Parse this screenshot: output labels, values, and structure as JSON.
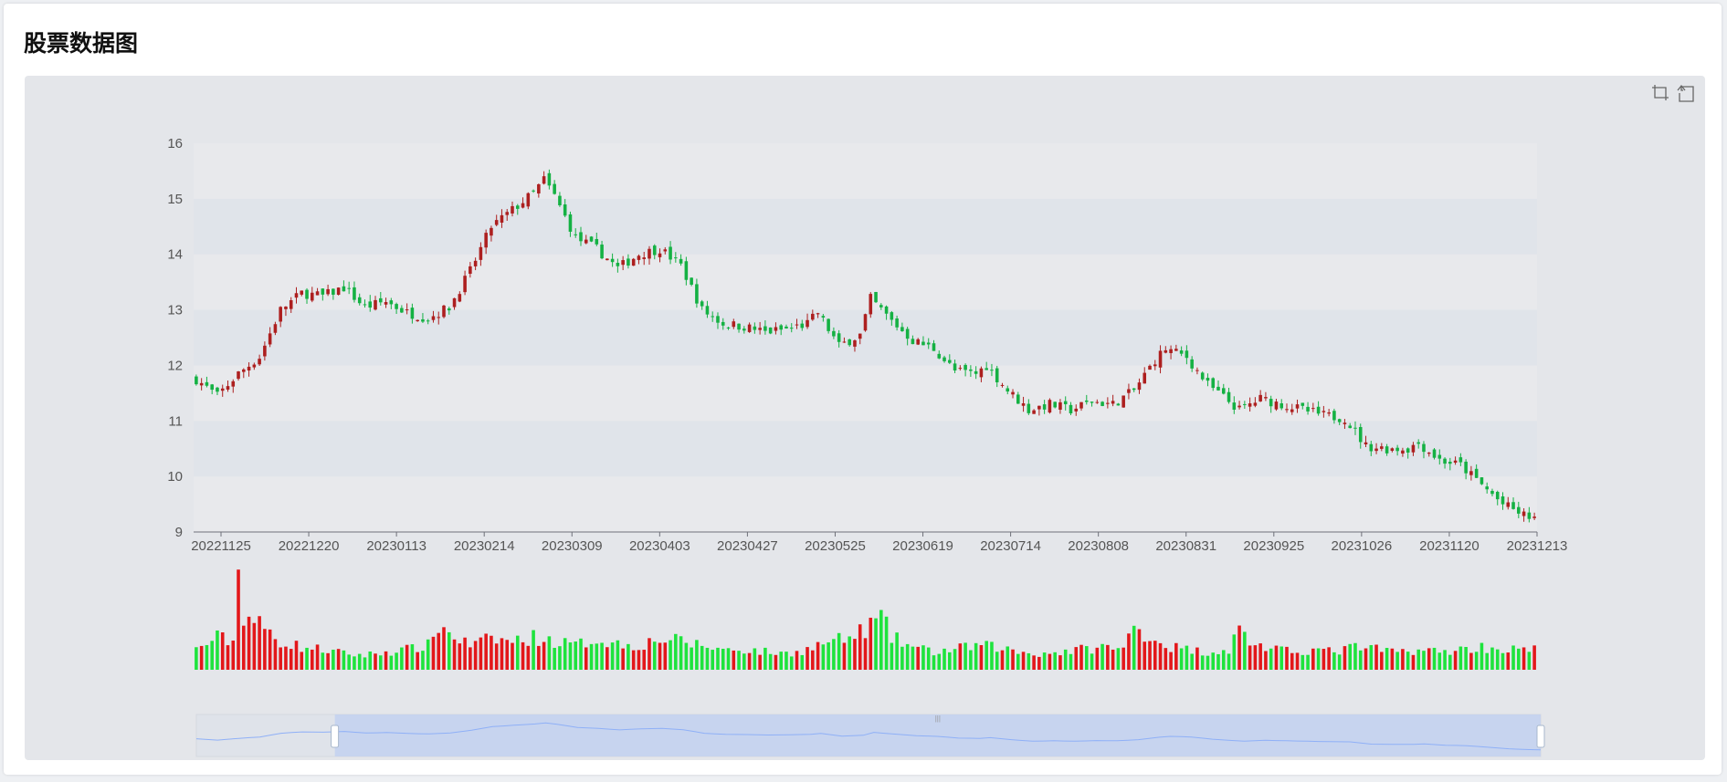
{
  "page": {
    "title": "股票数据图"
  },
  "toolbox": {
    "zoom_icon": "dataZoom-icon",
    "reset_icon": "dataZoom-reset-icon"
  },
  "colors": {
    "up": "#ad1f1f",
    "down": "#14b143",
    "volume_up": "#e3171a",
    "volume_down": "#1ee33d",
    "band_light": "#e8e9ec",
    "band_dark": "#e0e4ea",
    "axis": "#6e7079",
    "slider_fill": "#c4d1f0",
    "slider_line": "#8fb0f7"
  },
  "chart_data": {
    "type": "candlestick",
    "y_axis": {
      "min": 9,
      "max": 16,
      "ticks": [
        "16",
        "15",
        "14",
        "13",
        "12",
        "11",
        "10",
        "9"
      ]
    },
    "x_axis": {
      "tick_labels": [
        "20221125",
        "20221220",
        "20230113",
        "20230214",
        "20230309",
        "20230403",
        "20230427",
        "20230525",
        "20230619",
        "20230714",
        "20230808",
        "20230831",
        "20230925",
        "20231026",
        "20231120",
        "20231213"
      ]
    },
    "grid": "alternating bands",
    "close_path": [
      [
        0,
        11.75
      ],
      [
        4,
        11.45
      ],
      [
        8,
        11.85
      ],
      [
        12,
        12.15
      ],
      [
        16,
        13.0
      ],
      [
        20,
        13.3
      ],
      [
        24,
        13.25
      ],
      [
        28,
        13.4
      ],
      [
        32,
        13.05
      ],
      [
        36,
        13.15
      ],
      [
        40,
        12.95
      ],
      [
        44,
        12.85
      ],
      [
        48,
        13.05
      ],
      [
        52,
        13.7
      ],
      [
        56,
        14.5
      ],
      [
        60,
        14.8
      ],
      [
        64,
        15.1
      ],
      [
        66,
        15.35
      ],
      [
        68,
        15.05
      ],
      [
        72,
        14.3
      ],
      [
        76,
        14.1
      ],
      [
        80,
        13.75
      ],
      [
        84,
        14.0
      ],
      [
        88,
        14.1
      ],
      [
        92,
        13.8
      ],
      [
        96,
        13.0
      ],
      [
        100,
        12.75
      ],
      [
        104,
        12.7
      ],
      [
        108,
        12.6
      ],
      [
        112,
        12.65
      ],
      [
        116,
        12.75
      ],
      [
        118,
        12.95
      ],
      [
        122,
        12.35
      ],
      [
        126,
        12.55
      ],
      [
        128,
        13.2
      ],
      [
        132,
        12.8
      ],
      [
        136,
        12.45
      ],
      [
        140,
        12.3
      ],
      [
        144,
        11.9
      ],
      [
        148,
        11.85
      ],
      [
        150,
        12.0
      ],
      [
        154,
        11.55
      ],
      [
        158,
        11.2
      ],
      [
        162,
        11.3
      ],
      [
        166,
        11.2
      ],
      [
        170,
        11.35
      ],
      [
        174,
        11.3
      ],
      [
        178,
        11.55
      ],
      [
        182,
        12.1
      ],
      [
        184,
        12.3
      ],
      [
        188,
        12.15
      ],
      [
        192,
        11.65
      ],
      [
        196,
        11.35
      ],
      [
        198,
        11.2
      ],
      [
        202,
        11.4
      ],
      [
        206,
        11.3
      ],
      [
        210,
        11.2
      ],
      [
        214,
        11.1
      ],
      [
        218,
        11.05
      ],
      [
        222,
        10.55
      ],
      [
        226,
        10.5
      ],
      [
        230,
        10.5
      ],
      [
        232,
        10.6
      ],
      [
        236,
        10.3
      ],
      [
        240,
        10.2
      ],
      [
        244,
        9.85
      ],
      [
        248,
        9.5
      ],
      [
        252,
        9.3
      ],
      [
        254,
        9.25
      ]
    ],
    "volume_path": [
      [
        0,
        25
      ],
      [
        4,
        40
      ],
      [
        7,
        35
      ],
      [
        8,
        120
      ],
      [
        9,
        70
      ],
      [
        12,
        55
      ],
      [
        16,
        35
      ],
      [
        20,
        28
      ],
      [
        24,
        25
      ],
      [
        28,
        20
      ],
      [
        32,
        18
      ],
      [
        36,
        22
      ],
      [
        40,
        25
      ],
      [
        44,
        30
      ],
      [
        46,
        55
      ],
      [
        48,
        45
      ],
      [
        52,
        30
      ],
      [
        56,
        38
      ],
      [
        60,
        35
      ],
      [
        64,
        40
      ],
      [
        68,
        35
      ],
      [
        72,
        30
      ],
      [
        76,
        38
      ],
      [
        80,
        32
      ],
      [
        84,
        30
      ],
      [
        88,
        38
      ],
      [
        92,
        35
      ],
      [
        96,
        30
      ],
      [
        100,
        25
      ],
      [
        104,
        25
      ],
      [
        108,
        22
      ],
      [
        112,
        20
      ],
      [
        116,
        25
      ],
      [
        120,
        35
      ],
      [
        124,
        38
      ],
      [
        128,
        55
      ],
      [
        130,
        65
      ],
      [
        132,
        40
      ],
      [
        136,
        28
      ],
      [
        140,
        22
      ],
      [
        144,
        25
      ],
      [
        148,
        30
      ],
      [
        152,
        28
      ],
      [
        156,
        22
      ],
      [
        160,
        20
      ],
      [
        164,
        22
      ],
      [
        168,
        25
      ],
      [
        172,
        28
      ],
      [
        176,
        25
      ],
      [
        178,
        55
      ],
      [
        180,
        45
      ],
      [
        184,
        30
      ],
      [
        188,
        25
      ],
      [
        192,
        22
      ],
      [
        196,
        25
      ],
      [
        198,
        50
      ],
      [
        200,
        35
      ],
      [
        204,
        25
      ],
      [
        208,
        22
      ],
      [
        212,
        25
      ],
      [
        216,
        22
      ],
      [
        220,
        28
      ],
      [
        224,
        25
      ],
      [
        228,
        22
      ],
      [
        232,
        25
      ],
      [
        236,
        22
      ],
      [
        240,
        25
      ],
      [
        244,
        28
      ],
      [
        248,
        25
      ],
      [
        252,
        25
      ],
      [
        254,
        25
      ]
    ],
    "slider": {
      "range_start_pct": 10.3,
      "range_end_pct": 100
    }
  }
}
